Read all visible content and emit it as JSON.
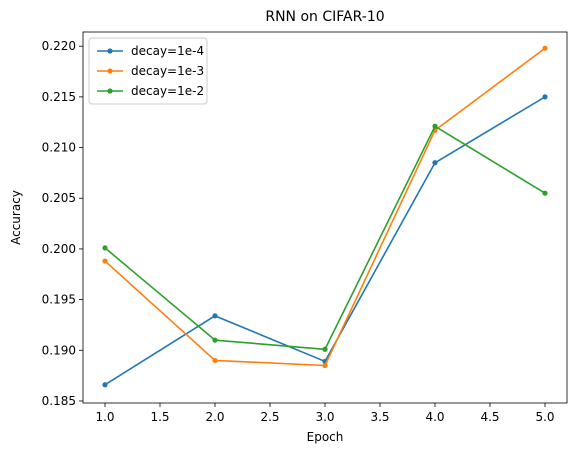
{
  "chart_data": {
    "type": "line",
    "title": "RNN on CIFAR-10",
    "xlabel": "Epoch",
    "ylabel": "Accuracy",
    "x": [
      1.0,
      2.0,
      3.0,
      4.0,
      5.0
    ],
    "xlim": [
      0.8,
      5.2
    ],
    "ylim": [
      0.1848,
      0.2214
    ],
    "xticks": [
      1.0,
      1.5,
      2.0,
      2.5,
      3.0,
      3.5,
      4.0,
      4.5,
      5.0
    ],
    "xtick_labels": [
      "1.0",
      "1.5",
      "2.0",
      "2.5",
      "3.0",
      "3.5",
      "4.0",
      "4.5",
      "5.0"
    ],
    "yticks": [
      0.185,
      0.19,
      0.195,
      0.2,
      0.205,
      0.21,
      0.215,
      0.22
    ],
    "ytick_labels": [
      "0.185",
      "0.190",
      "0.195",
      "0.200",
      "0.205",
      "0.210",
      "0.215",
      "0.220"
    ],
    "grid": false,
    "legend_position": "top-left",
    "series": [
      {
        "name": "decay=1e-4",
        "color": "#1f77b4",
        "values": [
          0.1866,
          0.1934,
          0.1889,
          0.2085,
          0.215
        ]
      },
      {
        "name": "decay=1e-3",
        "color": "#ff7f0e",
        "values": [
          0.1988,
          0.189,
          0.1885,
          0.2117,
          0.2198
        ]
      },
      {
        "name": "decay=1e-2",
        "color": "#2ca02c",
        "values": [
          0.2001,
          0.191,
          0.1901,
          0.2121,
          0.2055
        ]
      }
    ]
  }
}
